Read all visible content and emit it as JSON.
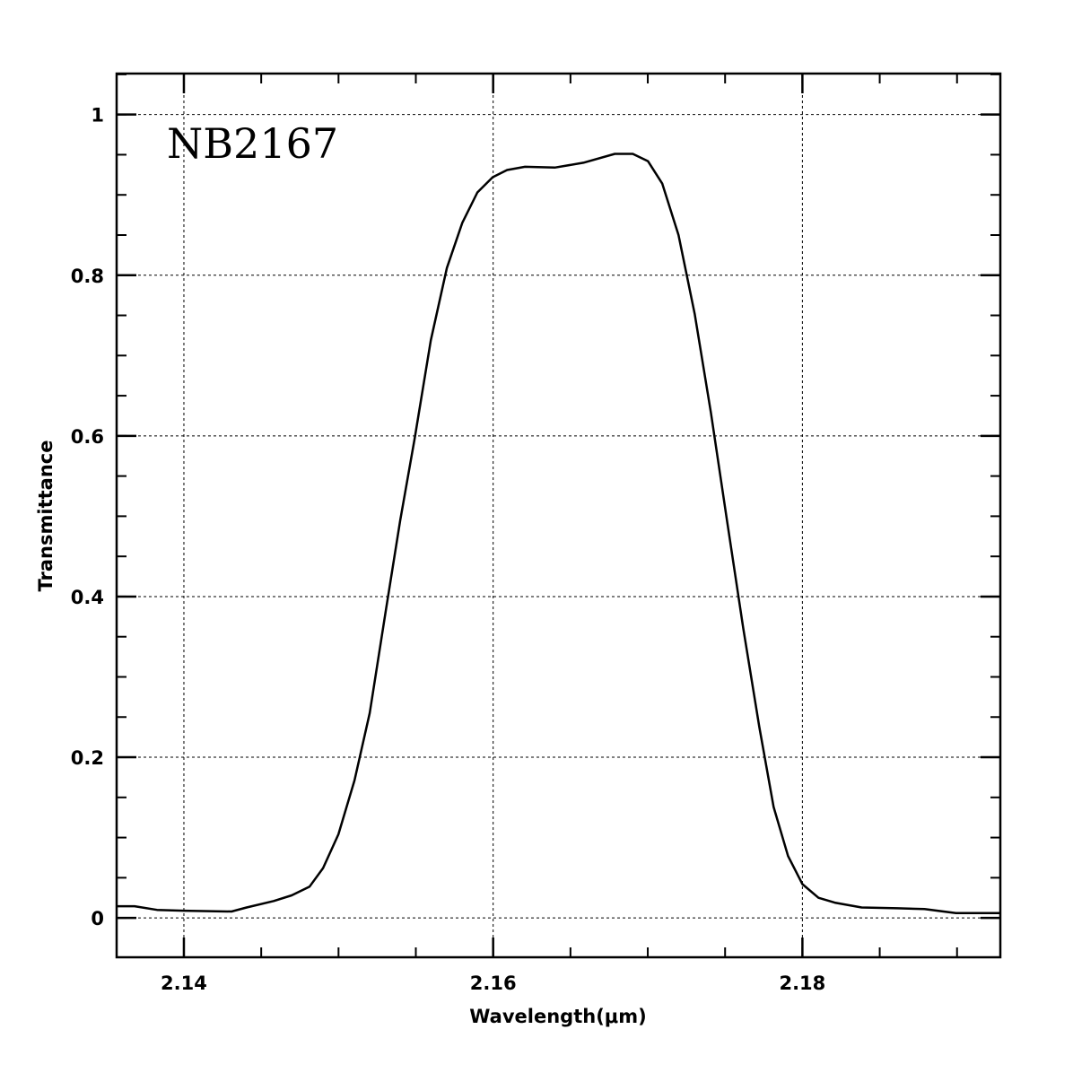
{
  "chart_data": {
    "type": "line",
    "title": "NB2167",
    "xlabel": "Wavelength(μm)",
    "ylabel": "Transmittance",
    "xlim": [
      2.13565,
      2.1928
    ],
    "ylim": [
      -0.049,
      1.051
    ],
    "grid": true,
    "xticks": [
      2.14,
      2.16,
      2.18
    ],
    "xtick_labels": [
      "2.14",
      "2.16",
      "2.18"
    ],
    "yticks": [
      0,
      0.2,
      0.4,
      0.6,
      0.8,
      1
    ],
    "ytick_labels": [
      "0",
      "0.2",
      "0.4",
      "0.6",
      "0.8",
      "1"
    ],
    "x_minor_step": 0.005,
    "y_minor_step": 0.05,
    "series": [
      {
        "name": "NB2167",
        "color": "#000000",
        "x": [
          2.13565,
          2.13681,
          2.13826,
          2.14,
          2.14308,
          2.14406,
          2.14581,
          2.14697,
          2.14813,
          2.149,
          2.14999,
          2.15103,
          2.15202,
          2.15306,
          2.15399,
          2.15492,
          2.15597,
          2.15701,
          2.158,
          2.15898,
          2.15997,
          2.1609,
          2.16206,
          2.16398,
          2.16583,
          2.16787,
          2.16903,
          2.17001,
          2.17094,
          2.17199,
          2.17303,
          2.17408,
          2.17512,
          2.17617,
          2.17721,
          2.17814,
          2.17907,
          2.18,
          2.18104,
          2.18209,
          2.18383,
          2.18615,
          2.1879,
          2.18993,
          2.19283
        ],
        "y": [
          0.0145,
          0.0145,
          0.01,
          0.009,
          0.008,
          0.013,
          0.021,
          0.028,
          0.039,
          0.062,
          0.104,
          0.171,
          0.255,
          0.383,
          0.495,
          0.596,
          0.719,
          0.809,
          0.865,
          0.903,
          0.922,
          0.931,
          0.935,
          0.934,
          0.94,
          0.951,
          0.951,
          0.942,
          0.914,
          0.85,
          0.752,
          0.629,
          0.495,
          0.361,
          0.238,
          0.138,
          0.077,
          0.042,
          0.025,
          0.019,
          0.013,
          0.012,
          0.011,
          0.006,
          0.006
        ]
      }
    ]
  }
}
